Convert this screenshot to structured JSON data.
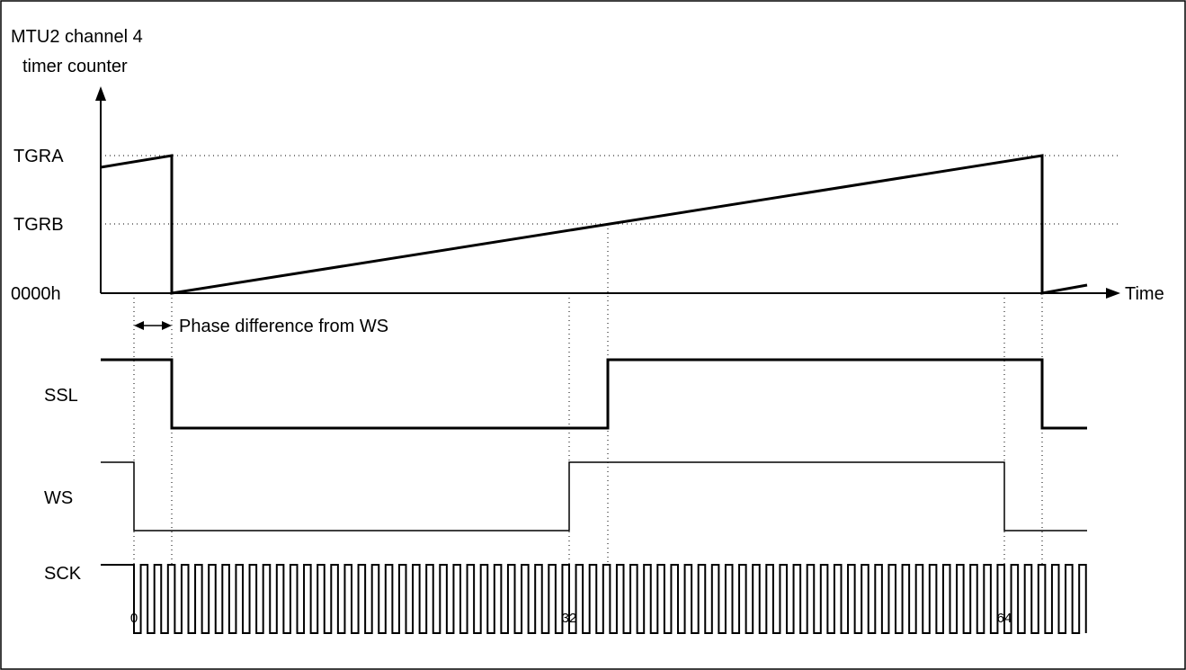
{
  "y_axis_label_line1": "MTU2 channel 4",
  "y_axis_label_line2": "timer counter",
  "levels": {
    "tgra": "TGRA",
    "tgrb": "TGRB",
    "zero": "0000h"
  },
  "x_axis_label": "Time",
  "phase_label": "Phase difference from WS",
  "signals": {
    "ssl": "SSL",
    "ws": "WS",
    "sck": "SCK"
  },
  "sck_counts": [
    "0",
    "32",
    "64"
  ],
  "sck_cycles_per_ws_period": 64
}
